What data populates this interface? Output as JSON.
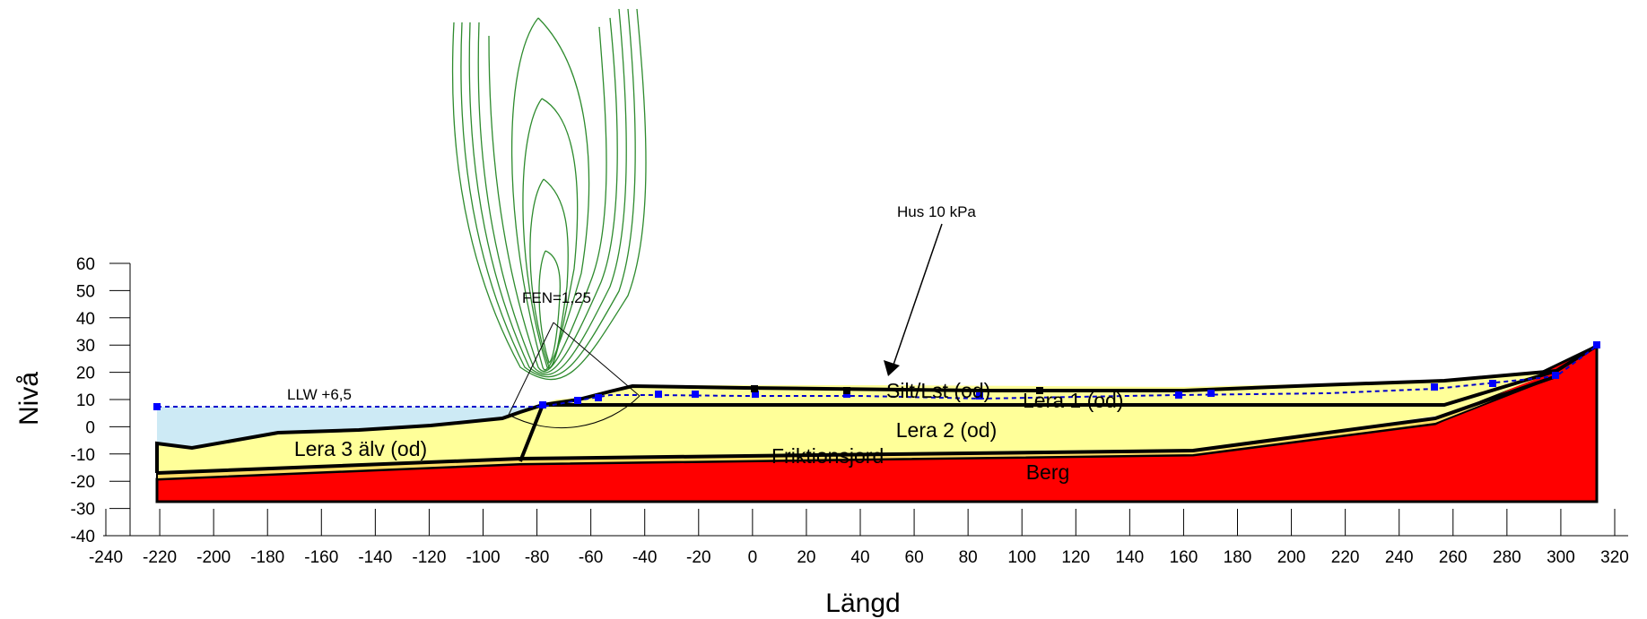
{
  "axes": {
    "x_title": "Längd",
    "y_title": "Nivå",
    "x_ticks": [
      "-240",
      "-220",
      "-200",
      "-180",
      "-160",
      "-140",
      "-120",
      "-100",
      "-80",
      "-60",
      "-40",
      "-20",
      "0",
      "20",
      "40",
      "60",
      "80",
      "100",
      "120",
      "140",
      "160",
      "180",
      "200",
      "220",
      "240",
      "260",
      "280",
      "300",
      "320"
    ],
    "y_ticks": [
      "60",
      "50",
      "40",
      "30",
      "20",
      "10",
      "0",
      "-10",
      "-20",
      "-30",
      "-40"
    ],
    "x_range": [
      -240,
      320
    ],
    "y_range": [
      -40,
      60
    ]
  },
  "layers": {
    "silt": "Silt/Lst (od)",
    "lera1": "Lera 1 (od)",
    "lera2": "Lera 2 (od)",
    "lera3": "Lera 3 älv (od)",
    "friktion": "Friktionsjord",
    "berg": "Berg"
  },
  "annotations": {
    "llw": "LLW +6,5",
    "fen": "FEN=1,25",
    "hus": "Hus 10 kPa"
  },
  "colors": {
    "clay": "#ffff99",
    "rock": "#ff0000",
    "water": "#cdeaf5",
    "contour": "#2e8b2e",
    "phreatic": "#0000cc",
    "outline": "#000000"
  }
}
